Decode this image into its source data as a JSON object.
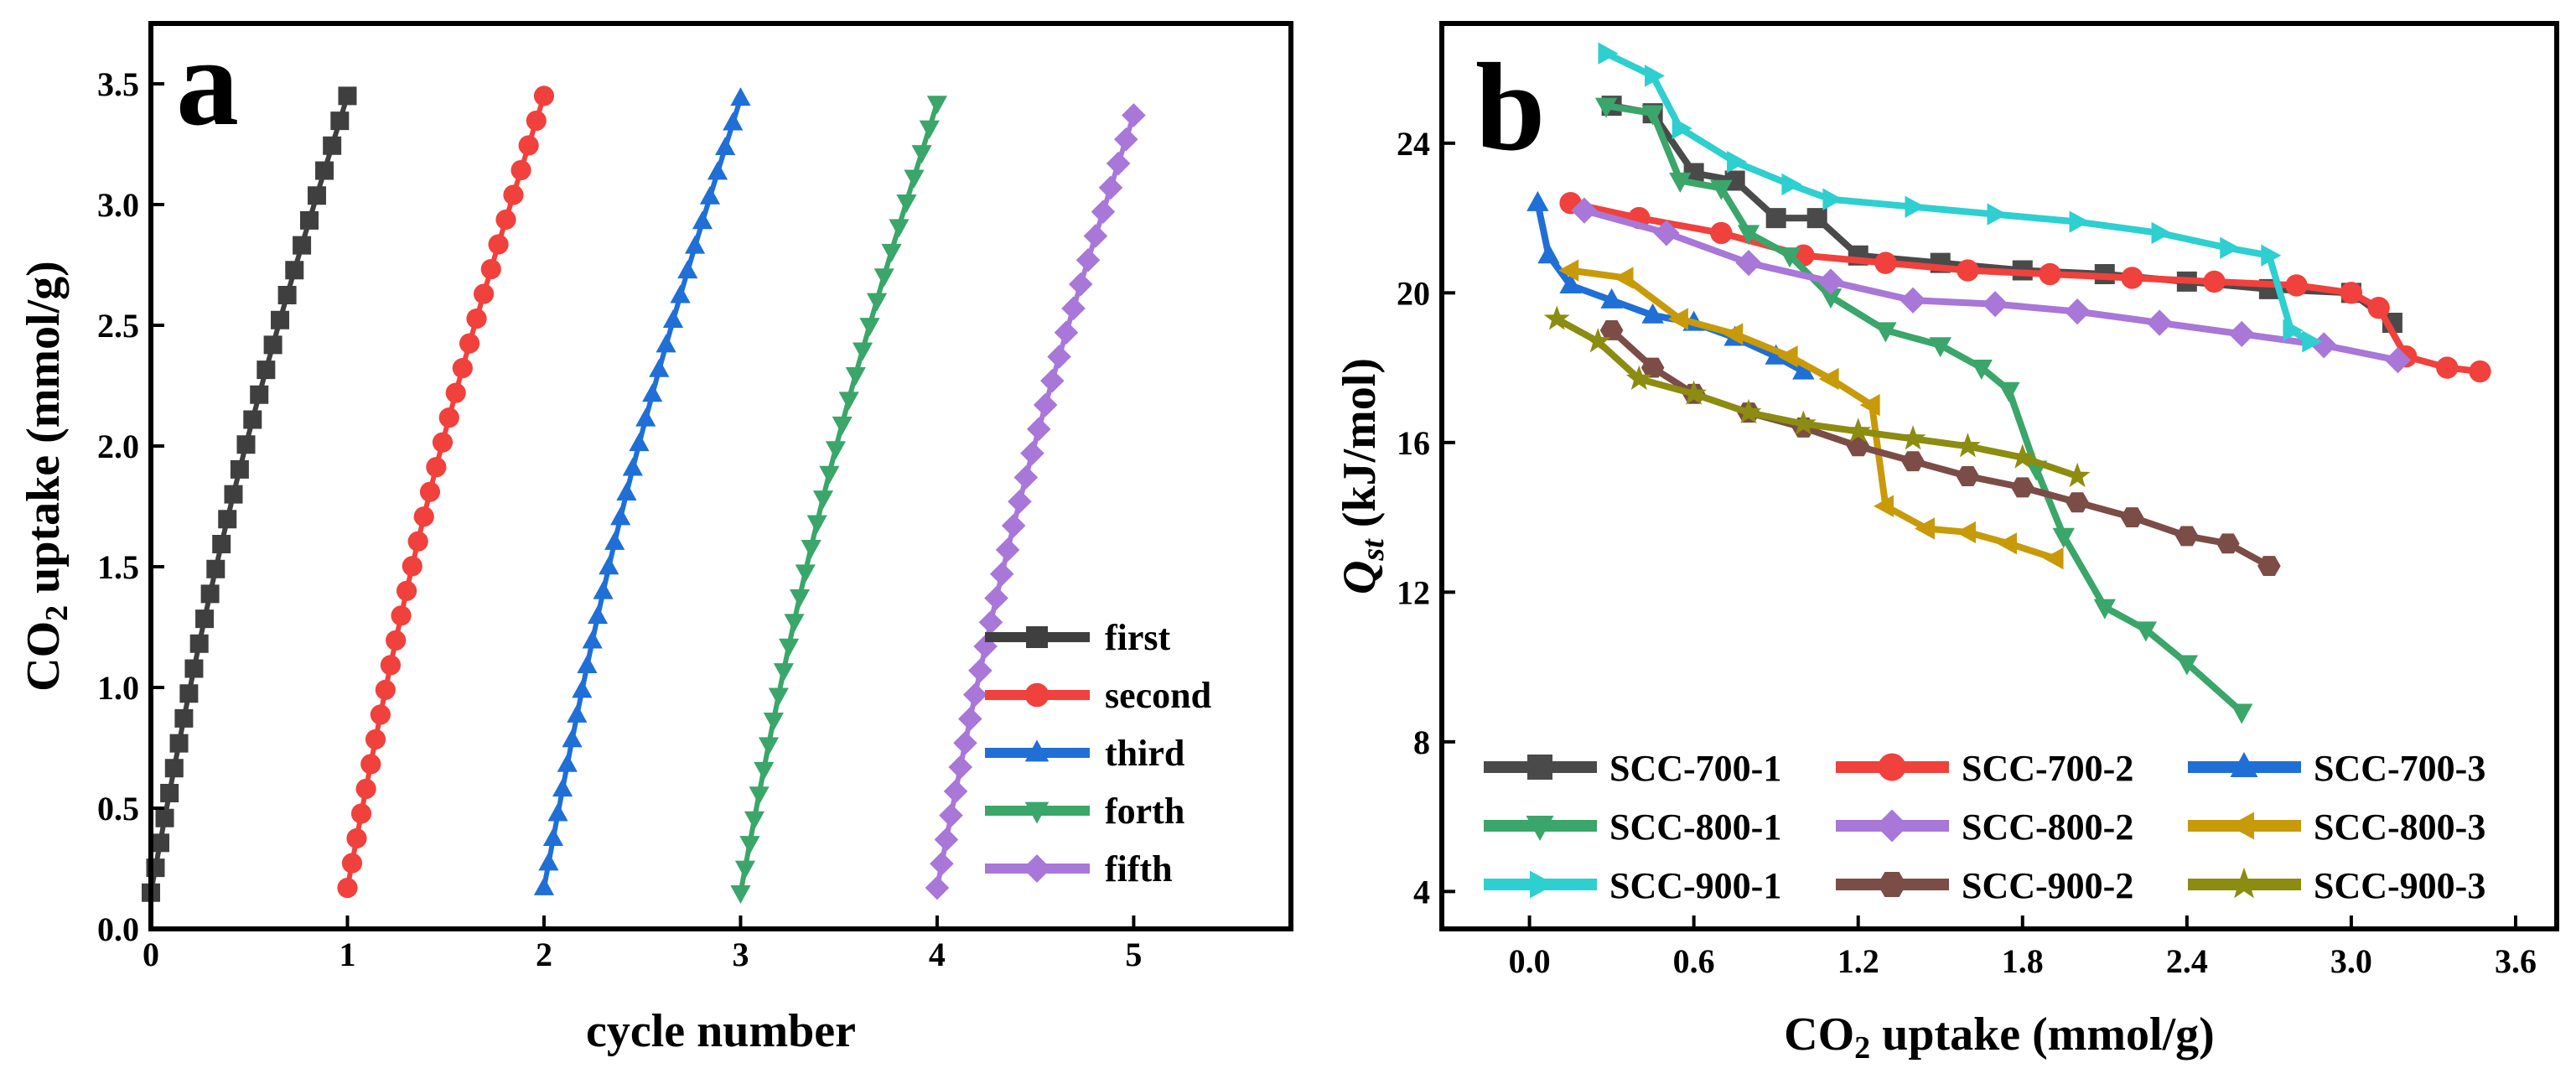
{
  "chart_data": [
    {
      "type": "scatter",
      "panel": "a",
      "xlabel": "cycle number",
      "ylabel_main": "CO",
      "ylabel_sub": "2",
      "ylabel_rest": " uptake (mmol/g)",
      "xlim": [
        0,
        5.8
      ],
      "ylim": [
        0,
        3.75
      ],
      "xticks": [
        0,
        1,
        2,
        3,
        4,
        5
      ],
      "yticks": [
        0.0,
        0.5,
        1.0,
        1.5,
        2.0,
        2.5,
        3.0,
        3.5
      ],
      "ytick_labels": [
        "0.0",
        "0.5",
        "1.0",
        "1.5",
        "2.0",
        "2.5",
        "3.0",
        "3.5"
      ],
      "legend_position": "bottom-right",
      "series": [
        {
          "name": "first",
          "color": "#3f3f3f",
          "marker": "square",
          "x0": 0.0,
          "x1": 1.0,
          "y0": 0.15,
          "y1": 3.45,
          "n": 33,
          "curve": 0.08
        },
        {
          "name": "second",
          "color": "#f0413d",
          "marker": "circle",
          "x0": 1.0,
          "x1": 2.0,
          "y0": 0.17,
          "y1": 3.45,
          "n": 33,
          "curve": 0.08
        },
        {
          "name": "third",
          "color": "#1f6fd6",
          "marker": "triangle-up",
          "x0": 2.0,
          "x1": 3.0,
          "y0": 0.17,
          "y1": 3.44,
          "n": 33,
          "curve": 0.08
        },
        {
          "name": "forth",
          "color": "#3aa66a",
          "marker": "triangle-down",
          "x0": 3.0,
          "x1": 4.0,
          "y0": 0.15,
          "y1": 3.42,
          "n": 33,
          "curve": 0.08
        },
        {
          "name": "fifth",
          "color": "#a877d8",
          "marker": "diamond",
          "x0": 4.0,
          "x1": 5.0,
          "y0": 0.17,
          "y1": 3.37,
          "n": 33,
          "curve": 0.08
        }
      ]
    },
    {
      "type": "line",
      "panel": "b",
      "xlabel_main": "CO",
      "xlabel_sub": "2",
      "xlabel_rest": " uptake (mmol/g)",
      "ylabel_main": "Q",
      "ylabel_sub": "st",
      "ylabel_rest": " (kJ/mol)",
      "xlim": [
        -0.32,
        3.75
      ],
      "ylim": [
        3.0,
        27.2
      ],
      "xticks": [
        0.0,
        0.6,
        1.2,
        1.8,
        2.4,
        3.0,
        3.6
      ],
      "xtick_labels": [
        "0.0",
        "0.6",
        "1.2",
        "1.8",
        "2.4",
        "3.0",
        "3.6"
      ],
      "yticks": [
        4,
        8,
        12,
        16,
        20,
        24
      ],
      "legend_position": "bottom",
      "series": [
        {
          "name": "SCC-700-1",
          "color": "#4a4a4a",
          "marker": "square",
          "points": [
            [
              0.3,
              25
            ],
            [
              0.45,
              24.8
            ],
            [
              0.6,
              23.2
            ],
            [
              0.75,
              23.0
            ],
            [
              0.9,
              22.0
            ],
            [
              1.05,
              22.0
            ],
            [
              1.2,
              21.0
            ],
            [
              1.5,
              20.8
            ],
            [
              1.8,
              20.6
            ],
            [
              2.1,
              20.5
            ],
            [
              2.4,
              20.3
            ],
            [
              2.7,
              20.1
            ],
            [
              3.0,
              20.0
            ],
            [
              3.15,
              19.2
            ]
          ]
        },
        {
          "name": "SCC-700-2",
          "color": "#f0413d",
          "marker": "circle",
          "points": [
            [
              0.15,
              22.4
            ],
            [
              0.4,
              22.0
            ],
            [
              0.7,
              21.6
            ],
            [
              1.0,
              21.0
            ],
            [
              1.3,
              20.8
            ],
            [
              1.6,
              20.6
            ],
            [
              1.9,
              20.5
            ],
            [
              2.2,
              20.4
            ],
            [
              2.5,
              20.3
            ],
            [
              2.8,
              20.2
            ],
            [
              3.0,
              20.0
            ],
            [
              3.1,
              19.6
            ],
            [
              3.2,
              18.3
            ],
            [
              3.35,
              18.0
            ],
            [
              3.47,
              17.9
            ]
          ]
        },
        {
          "name": "SCC-700-3",
          "color": "#1f6fd6",
          "marker": "triangle-up",
          "points": [
            [
              0.03,
              22.4
            ],
            [
              0.07,
              21.0
            ],
            [
              0.15,
              20.2
            ],
            [
              0.3,
              19.8
            ],
            [
              0.45,
              19.4
            ],
            [
              0.6,
              19.2
            ],
            [
              0.75,
              18.8
            ],
            [
              0.9,
              18.3
            ],
            [
              1.0,
              17.9
            ]
          ]
        },
        {
          "name": "SCC-800-1",
          "color": "#3aa66a",
          "marker": "triangle-down",
          "points": [
            [
              0.28,
              25.0
            ],
            [
              0.45,
              24.8
            ],
            [
              0.55,
              23.0
            ],
            [
              0.7,
              22.8
            ],
            [
              0.8,
              21.6
            ],
            [
              0.95,
              21.0
            ],
            [
              1.1,
              19.9
            ],
            [
              1.3,
              19.0
            ],
            [
              1.5,
              18.6
            ],
            [
              1.65,
              18.0
            ],
            [
              1.75,
              17.4
            ],
            [
              1.85,
              15.3
            ],
            [
              1.95,
              13.5
            ],
            [
              2.1,
              11.6
            ],
            [
              2.25,
              11.0
            ],
            [
              2.4,
              10.1
            ],
            [
              2.6,
              8.8
            ]
          ]
        },
        {
          "name": "SCC-800-2",
          "color": "#a877d8",
          "marker": "diamond",
          "points": [
            [
              0.2,
              22.2
            ],
            [
              0.5,
              21.6
            ],
            [
              0.8,
              20.8
            ],
            [
              1.1,
              20.3
            ],
            [
              1.4,
              19.8
            ],
            [
              1.7,
              19.7
            ],
            [
              2.0,
              19.5
            ],
            [
              2.3,
              19.2
            ],
            [
              2.6,
              18.9
            ],
            [
              2.9,
              18.6
            ],
            [
              3.17,
              18.2
            ]
          ]
        },
        {
          "name": "SCC-800-3",
          "color": "#c89a0a",
          "marker": "triangle-left",
          "points": [
            [
              0.15,
              20.6
            ],
            [
              0.35,
              20.4
            ],
            [
              0.55,
              19.3
            ],
            [
              0.75,
              18.9
            ],
            [
              0.95,
              18.3
            ],
            [
              1.1,
              17.7
            ],
            [
              1.25,
              17.0
            ],
            [
              1.3,
              14.3
            ],
            [
              1.45,
              13.7
            ],
            [
              1.6,
              13.6
            ],
            [
              1.75,
              13.3
            ],
            [
              1.92,
              12.9
            ]
          ]
        },
        {
          "name": "SCC-900-1",
          "color": "#2ecfd0",
          "marker": "triangle-right",
          "points": [
            [
              0.28,
              26.4
            ],
            [
              0.45,
              25.8
            ],
            [
              0.55,
              24.4
            ],
            [
              0.75,
              23.5
            ],
            [
              0.95,
              22.9
            ],
            [
              1.1,
              22.5
            ],
            [
              1.4,
              22.3
            ],
            [
              1.7,
              22.1
            ],
            [
              2.0,
              21.9
            ],
            [
              2.3,
              21.6
            ],
            [
              2.55,
              21.2
            ],
            [
              2.7,
              21.0
            ],
            [
              2.78,
              19.0
            ],
            [
              2.85,
              18.7
            ]
          ]
        },
        {
          "name": "SCC-900-2",
          "color": "#7c4c46",
          "marker": "hexagon",
          "points": [
            [
              0.3,
              19.0
            ],
            [
              0.45,
              18.0
            ],
            [
              0.6,
              17.3
            ],
            [
              0.8,
              16.8
            ],
            [
              1.0,
              16.4
            ],
            [
              1.2,
              15.9
            ],
            [
              1.4,
              15.5
            ],
            [
              1.6,
              15.1
            ],
            [
              1.8,
              14.8
            ],
            [
              2.0,
              14.4
            ],
            [
              2.2,
              14.0
            ],
            [
              2.4,
              13.5
            ],
            [
              2.55,
              13.3
            ],
            [
              2.7,
              12.7
            ]
          ]
        },
        {
          "name": "SCC-900-3",
          "color": "#8c8c10",
          "marker": "star",
          "points": [
            [
              0.1,
              19.3
            ],
            [
              0.25,
              18.7
            ],
            [
              0.4,
              17.7
            ],
            [
              0.6,
              17.3
            ],
            [
              0.8,
              16.8
            ],
            [
              1.0,
              16.5
            ],
            [
              1.2,
              16.3
            ],
            [
              1.4,
              16.1
            ],
            [
              1.6,
              15.9
            ],
            [
              1.8,
              15.6
            ],
            [
              2.0,
              15.1
            ]
          ]
        }
      ]
    }
  ],
  "panel_a": {
    "letter": "a"
  },
  "panel_b": {
    "letter": "b"
  }
}
